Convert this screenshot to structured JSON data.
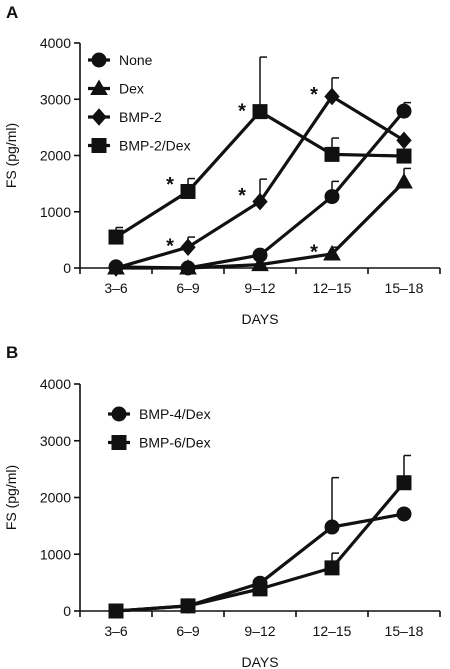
{
  "chart_data": [
    {
      "panel": "A",
      "type": "line",
      "categories": [
        "3–6",
        "6–9",
        "9–12",
        "12–15",
        "15–18"
      ],
      "xlabel": "DAYS",
      "ylabel": "FS (pg/ml)",
      "ylim": [
        0,
        4000
      ],
      "yticks": [
        0,
        1000,
        2000,
        3000,
        4000
      ],
      "legend_position": "top-left",
      "series": [
        {
          "name": "None",
          "marker": "circle",
          "values": [
            20,
            0,
            230,
            1270,
            2790
          ],
          "errors": [
            0,
            0,
            0,
            270,
            150
          ]
        },
        {
          "name": "Dex",
          "marker": "triangle",
          "values": [
            0,
            0,
            60,
            250,
            1530
          ],
          "errors": [
            0,
            0,
            0,
            120,
            240
          ]
        },
        {
          "name": "BMP-2",
          "marker": "diamond",
          "values": [
            0,
            370,
            1180,
            3050,
            2270
          ],
          "errors": [
            0,
            180,
            400,
            330,
            0
          ]
        },
        {
          "name": "BMP-2/Dex",
          "marker": "square",
          "values": [
            550,
            1360,
            2780,
            2020,
            1990
          ],
          "errors": [
            170,
            230,
            970,
            290,
            0
          ]
        }
      ],
      "annotations": [
        {
          "text": "*",
          "category": "6–9",
          "y": 1550
        },
        {
          "text": "*",
          "category": "9–12",
          "y": 2850
        },
        {
          "text": "*",
          "category": "6–9",
          "y": 450
        },
        {
          "text": "*",
          "category": "9–12",
          "y": 1350
        },
        {
          "text": "*",
          "category": "12–15",
          "y": 3150
        },
        {
          "text": "*",
          "category": "12–15",
          "y": 350
        }
      ]
    },
    {
      "panel": "B",
      "type": "line",
      "categories": [
        "3–6",
        "6–9",
        "9–12",
        "12–15",
        "15–18"
      ],
      "xlabel": "DAYS",
      "ylabel": "FS (pg/ml)",
      "ylim": [
        0,
        4000
      ],
      "yticks": [
        0,
        1000,
        2000,
        3000,
        4000
      ],
      "legend_position": "top-left",
      "series": [
        {
          "name": "BMP-4/Dex",
          "marker": "circle",
          "values": [
            0,
            90,
            490,
            1480,
            1710
          ],
          "errors": [
            0,
            0,
            0,
            870,
            0
          ]
        },
        {
          "name": "BMP-6/Dex",
          "marker": "square",
          "values": [
            0,
            90,
            390,
            760,
            2260
          ],
          "errors": [
            0,
            0,
            0,
            260,
            480
          ]
        }
      ]
    }
  ]
}
